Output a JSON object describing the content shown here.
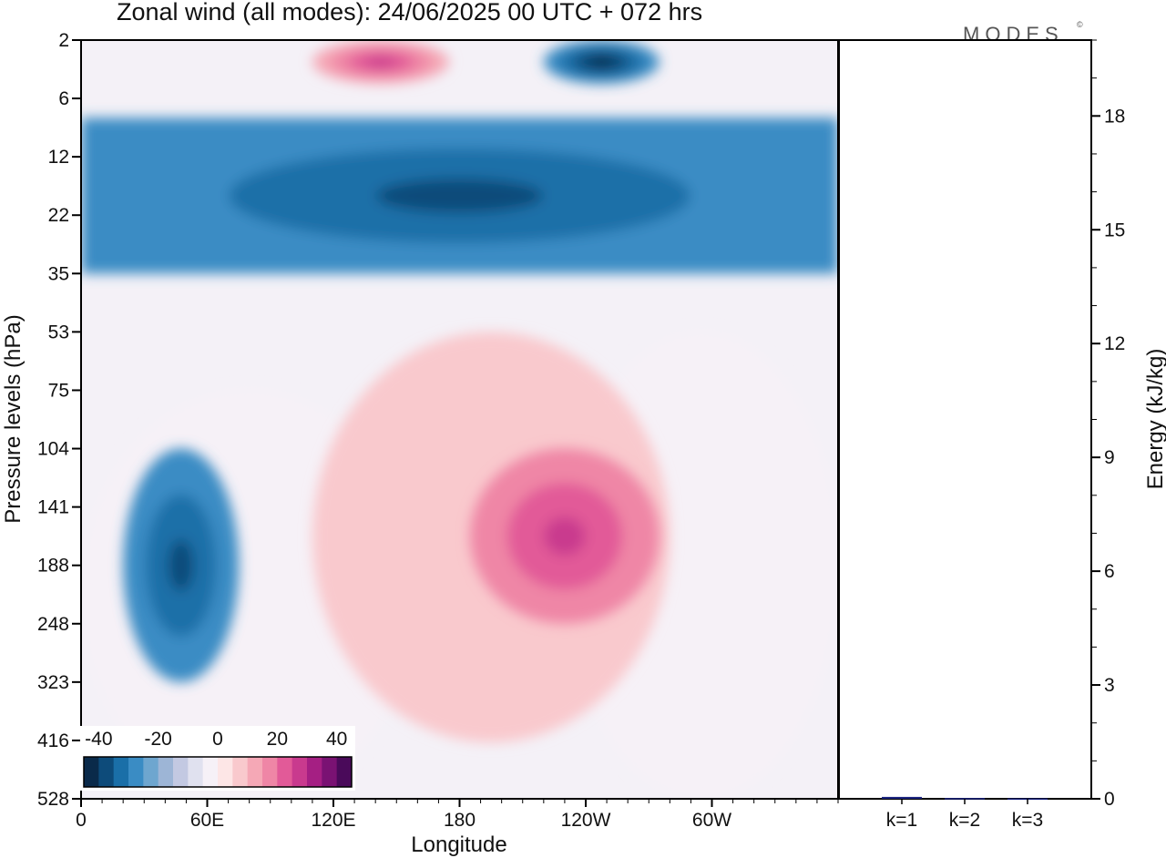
{
  "title": "Zonal wind (all modes):  24/06/2025  00 UTC  + 072 hrs",
  "brand": "MODES",
  "brand_mark": "©",
  "chart_data": [
    {
      "type": "heatmap",
      "title": "Zonal wind (all modes):  24/06/2025  00 UTC  + 072 hrs",
      "xlabel": "Longitude",
      "ylabel": "Pressure levels (hPa)",
      "x_tick_labels": [
        "0",
        "60E",
        "120E",
        "180",
        "120W",
        "60W"
      ],
      "x_tick_degrees": [
        0,
        60,
        120,
        180,
        240,
        300
      ],
      "x_range_degrees": [
        0,
        360
      ],
      "y_tick_labels": [
        "2",
        "6",
        "12",
        "22",
        "35",
        "53",
        "75",
        "104",
        "141",
        "188",
        "248",
        "323",
        "416",
        "528"
      ],
      "y_scale": "pressure levels, top 2 hPa to bottom 528 hPa",
      "colorbar": {
        "tick_labels": [
          "-40",
          "-20",
          "0",
          "20",
          "40"
        ],
        "range": [
          -45,
          45
        ],
        "step": 5,
        "colors": [
          "#0a2a4a",
          "#0d4b7a",
          "#1a6fa8",
          "#3a8cc4",
          "#6ea6cf",
          "#9db5d6",
          "#c3c9e2",
          "#e0e1ef",
          "#f6f1f7",
          "#fde6e6",
          "#f9c9cd",
          "#f5a8b6",
          "#ef86a6",
          "#e25a98",
          "#c93a8e",
          "#a51f83",
          "#7a1273",
          "#4a0a5a"
        ]
      },
      "regions": [
        {
          "name": "low-level-east-hemisphere-easterly",
          "lon": [
            0,
            160
          ],
          "plev": [
            75,
            528
          ],
          "value": -5
        },
        {
          "name": "low-level-west-hemisphere-easterly",
          "lon": [
            230,
            360
          ],
          "plev": [
            53,
            528
          ],
          "value": -5
        },
        {
          "name": "mid-level-pacific-westerly",
          "lon": [
            110,
            280
          ],
          "plev": [
            53,
            420
          ],
          "value": 5
        },
        {
          "name": "easterly-jet-core-40E",
          "lon": [
            20,
            75
          ],
          "plev": [
            104,
            323
          ],
          "value": -30,
          "peak": -40
        },
        {
          "name": "westerly-core-130W",
          "lon": [
            185,
            275
          ],
          "plev": [
            104,
            248
          ],
          "value": 15,
          "peak": 25
        },
        {
          "name": "stratospheric-easterly-band",
          "lon": [
            0,
            360
          ],
          "plev": [
            8,
            35
          ],
          "value": -30,
          "peak": -40
        },
        {
          "name": "upper-strat-westerly-pocket",
          "lon": [
            110,
            175
          ],
          "plev": [
            2,
            5
          ],
          "value": 10,
          "peak": 25
        },
        {
          "name": "upper-strat-easterly-pocket",
          "lon": [
            220,
            275
          ],
          "plev": [
            2,
            5
          ],
          "value": -30,
          "peak": -45
        }
      ]
    },
    {
      "type": "bar",
      "categories": [
        "k=1",
        "k=2",
        "k=3"
      ],
      "values": [
        0.05,
        0.02,
        0.01
      ],
      "ylabel": "Energy (kJ/kg)",
      "ylim": [
        0,
        20
      ],
      "y_tick_labels": [
        "0",
        "3",
        "6",
        "9",
        "12",
        "15",
        "18"
      ],
      "bar_color": "#1a237e"
    }
  ]
}
